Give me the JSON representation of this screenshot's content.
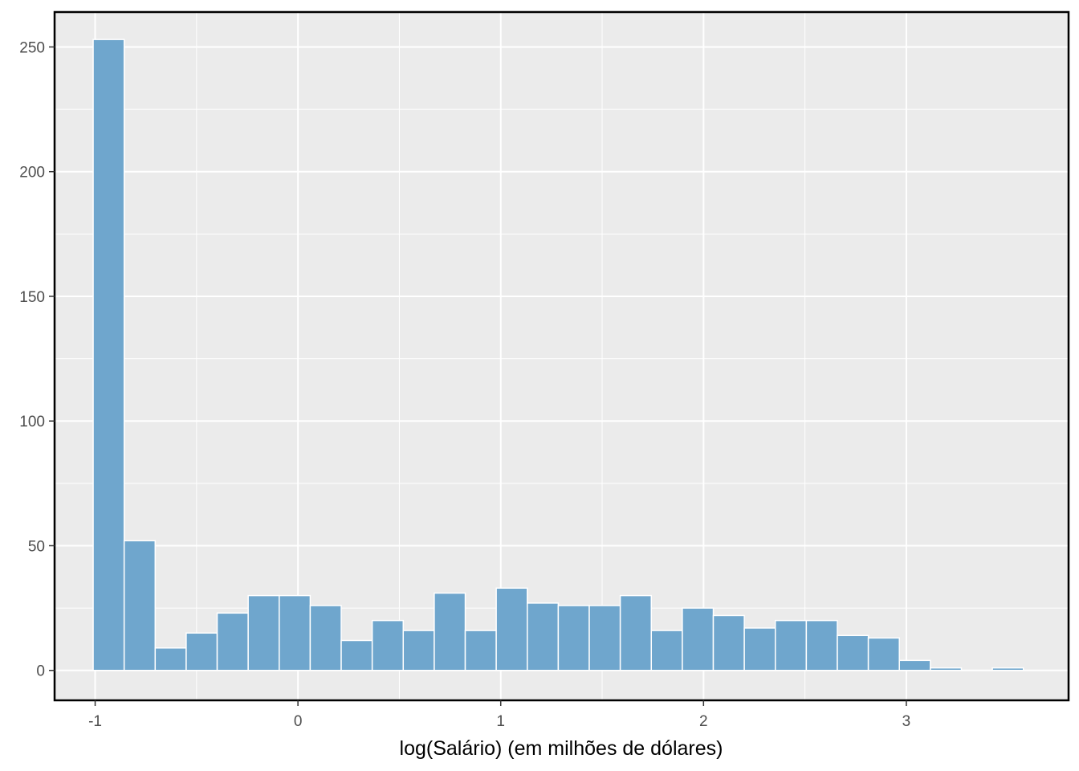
{
  "chart_data": {
    "type": "bar",
    "subtype": "histogram",
    "title": "",
    "xlabel": "log(Salário) (em milhões de dólares)",
    "ylabel": "",
    "xlim": [
      -1.2,
      3.8
    ],
    "ylim": [
      -12,
      264
    ],
    "x_ticks": [
      -1,
      0,
      1,
      2,
      3
    ],
    "x_tick_labels": [
      "-1",
      "0",
      "1",
      "2",
      "3"
    ],
    "y_ticks": [
      0,
      50,
      100,
      150,
      200,
      250
    ],
    "y_tick_labels": [
      "0",
      "50",
      "100",
      "150",
      "200",
      "250"
    ],
    "grid": true,
    "bin_width": 0.1529,
    "bin_start": -1.0098,
    "counts": [
      253,
      52,
      9,
      15,
      23,
      30,
      30,
      26,
      12,
      20,
      16,
      31,
      16,
      33,
      27,
      26,
      26,
      30,
      16,
      25,
      22,
      17,
      20,
      20,
      14,
      13,
      4,
      1,
      0,
      1
    ],
    "colors": {
      "bar_fill": "#6fa6cd",
      "bar_stroke": "#ffffff",
      "panel_background": "#ebebeb",
      "grid": "#ffffff",
      "border": "#000000"
    }
  }
}
